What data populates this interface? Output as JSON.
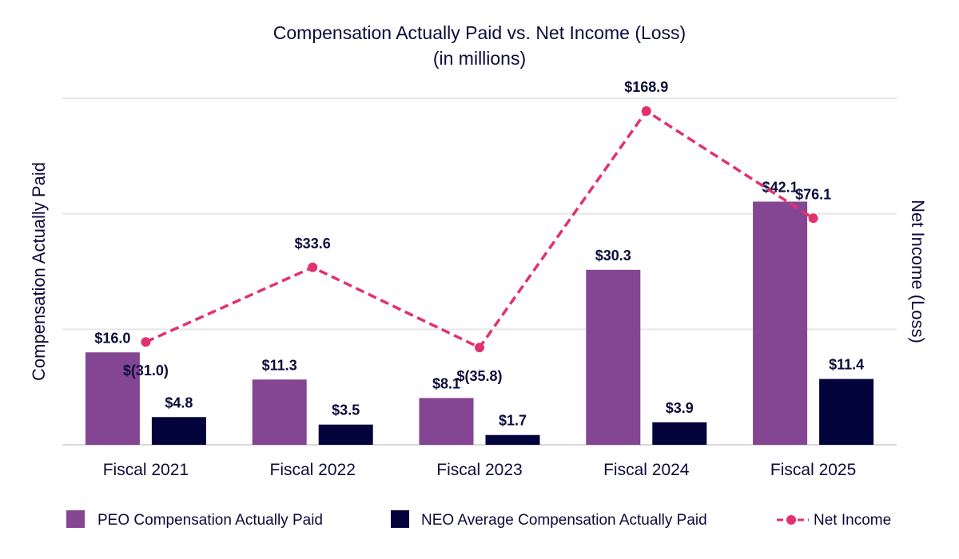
{
  "chart_data": {
    "type": "bar",
    "title": "Compensation Actually Paid vs. Net Income (Loss)",
    "subtitle": "(in millions)",
    "ylabel": "Compensation Actually Paid",
    "y2label": "Net Income (Loss)",
    "categories": [
      "Fiscal 2021",
      "Fiscal 2022",
      "Fiscal 2023",
      "Fiscal 2024",
      "Fiscal 2025"
    ],
    "ylim": [
      0,
      60
    ],
    "y2lim": [
      -120,
      180
    ],
    "gridlines": [
      0,
      20,
      40,
      60
    ],
    "series": [
      {
        "name": "PEO Compensation Actually Paid",
        "kind": "bar",
        "color": "#844692",
        "values": [
          16.0,
          11.3,
          8.1,
          30.3,
          42.1
        ],
        "labels": [
          "$16.0",
          "$11.3",
          "$8.1",
          "$30.3",
          "$42.1"
        ]
      },
      {
        "name": "NEO Average Compensation Actually Paid",
        "kind": "bar",
        "color": "#04043c",
        "values": [
          4.8,
          3.5,
          1.7,
          3.9,
          11.4
        ],
        "labels": [
          "$4.8",
          "$3.5",
          "$1.7",
          "$3.9",
          "$11.4"
        ]
      },
      {
        "name": "Net Income",
        "kind": "line",
        "axis": "right",
        "color": "#e3316b",
        "values": [
          -31.0,
          33.6,
          -35.8,
          168.9,
          76.1
        ],
        "labels": [
          "$(31.0)",
          "$33.6",
          "$(35.8)",
          "$168.9",
          "$76.1"
        ]
      }
    ],
    "legend": "bottom"
  }
}
